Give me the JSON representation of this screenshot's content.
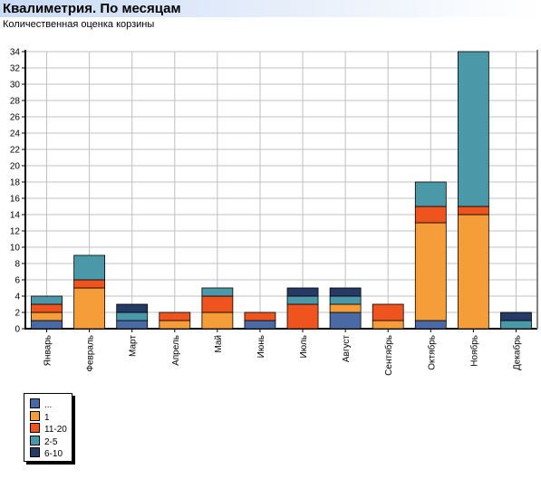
{
  "header": {
    "title": "Квалиметрия. По месяцам",
    "subtitle": "Количественная оценка корзины"
  },
  "colors": {
    "header_gradient_start": "#c9daf3",
    "grid": "#c0c0c0",
    "axis": "#000000"
  },
  "chart_data": {
    "type": "bar",
    "stacked": true,
    "grid": true,
    "legend_position": "bottom-left",
    "categories": [
      "Январь",
      "Февраль",
      "Март",
      "Апрель",
      "Май",
      "Июнь",
      "Июль",
      "Август",
      "Сентябрь",
      "Октябрь",
      "Ноябрь",
      "Декабрь"
    ],
    "ylim": [
      0,
      34
    ],
    "yticks": [
      0,
      2,
      4,
      6,
      8,
      10,
      12,
      14,
      16,
      18,
      20,
      22,
      24,
      26,
      28,
      30,
      32,
      34
    ],
    "series": [
      {
        "name": "...",
        "color": "#4a6aa5",
        "values": [
          1,
          0,
          1,
          0,
          0,
          1,
          0,
          2,
          0,
          1,
          0,
          0
        ]
      },
      {
        "name": "1",
        "color": "#f59d38",
        "values": [
          1,
          5,
          0,
          1,
          2,
          0,
          0,
          1,
          1,
          12,
          14,
          0
        ]
      },
      {
        "name": "11-20",
        "color": "#f0541e",
        "values": [
          1,
          1,
          0,
          1,
          2,
          1,
          3,
          0,
          2,
          2,
          1,
          0
        ]
      },
      {
        "name": "2-5",
        "color": "#4b98a9",
        "values": [
          1,
          3,
          1,
          0,
          1,
          0,
          1,
          1,
          0,
          3,
          19,
          1
        ]
      },
      {
        "name": "6-10",
        "color": "#263a66",
        "values": [
          0,
          0,
          1,
          0,
          0,
          0,
          1,
          1,
          0,
          0,
          0,
          1
        ]
      }
    ]
  }
}
